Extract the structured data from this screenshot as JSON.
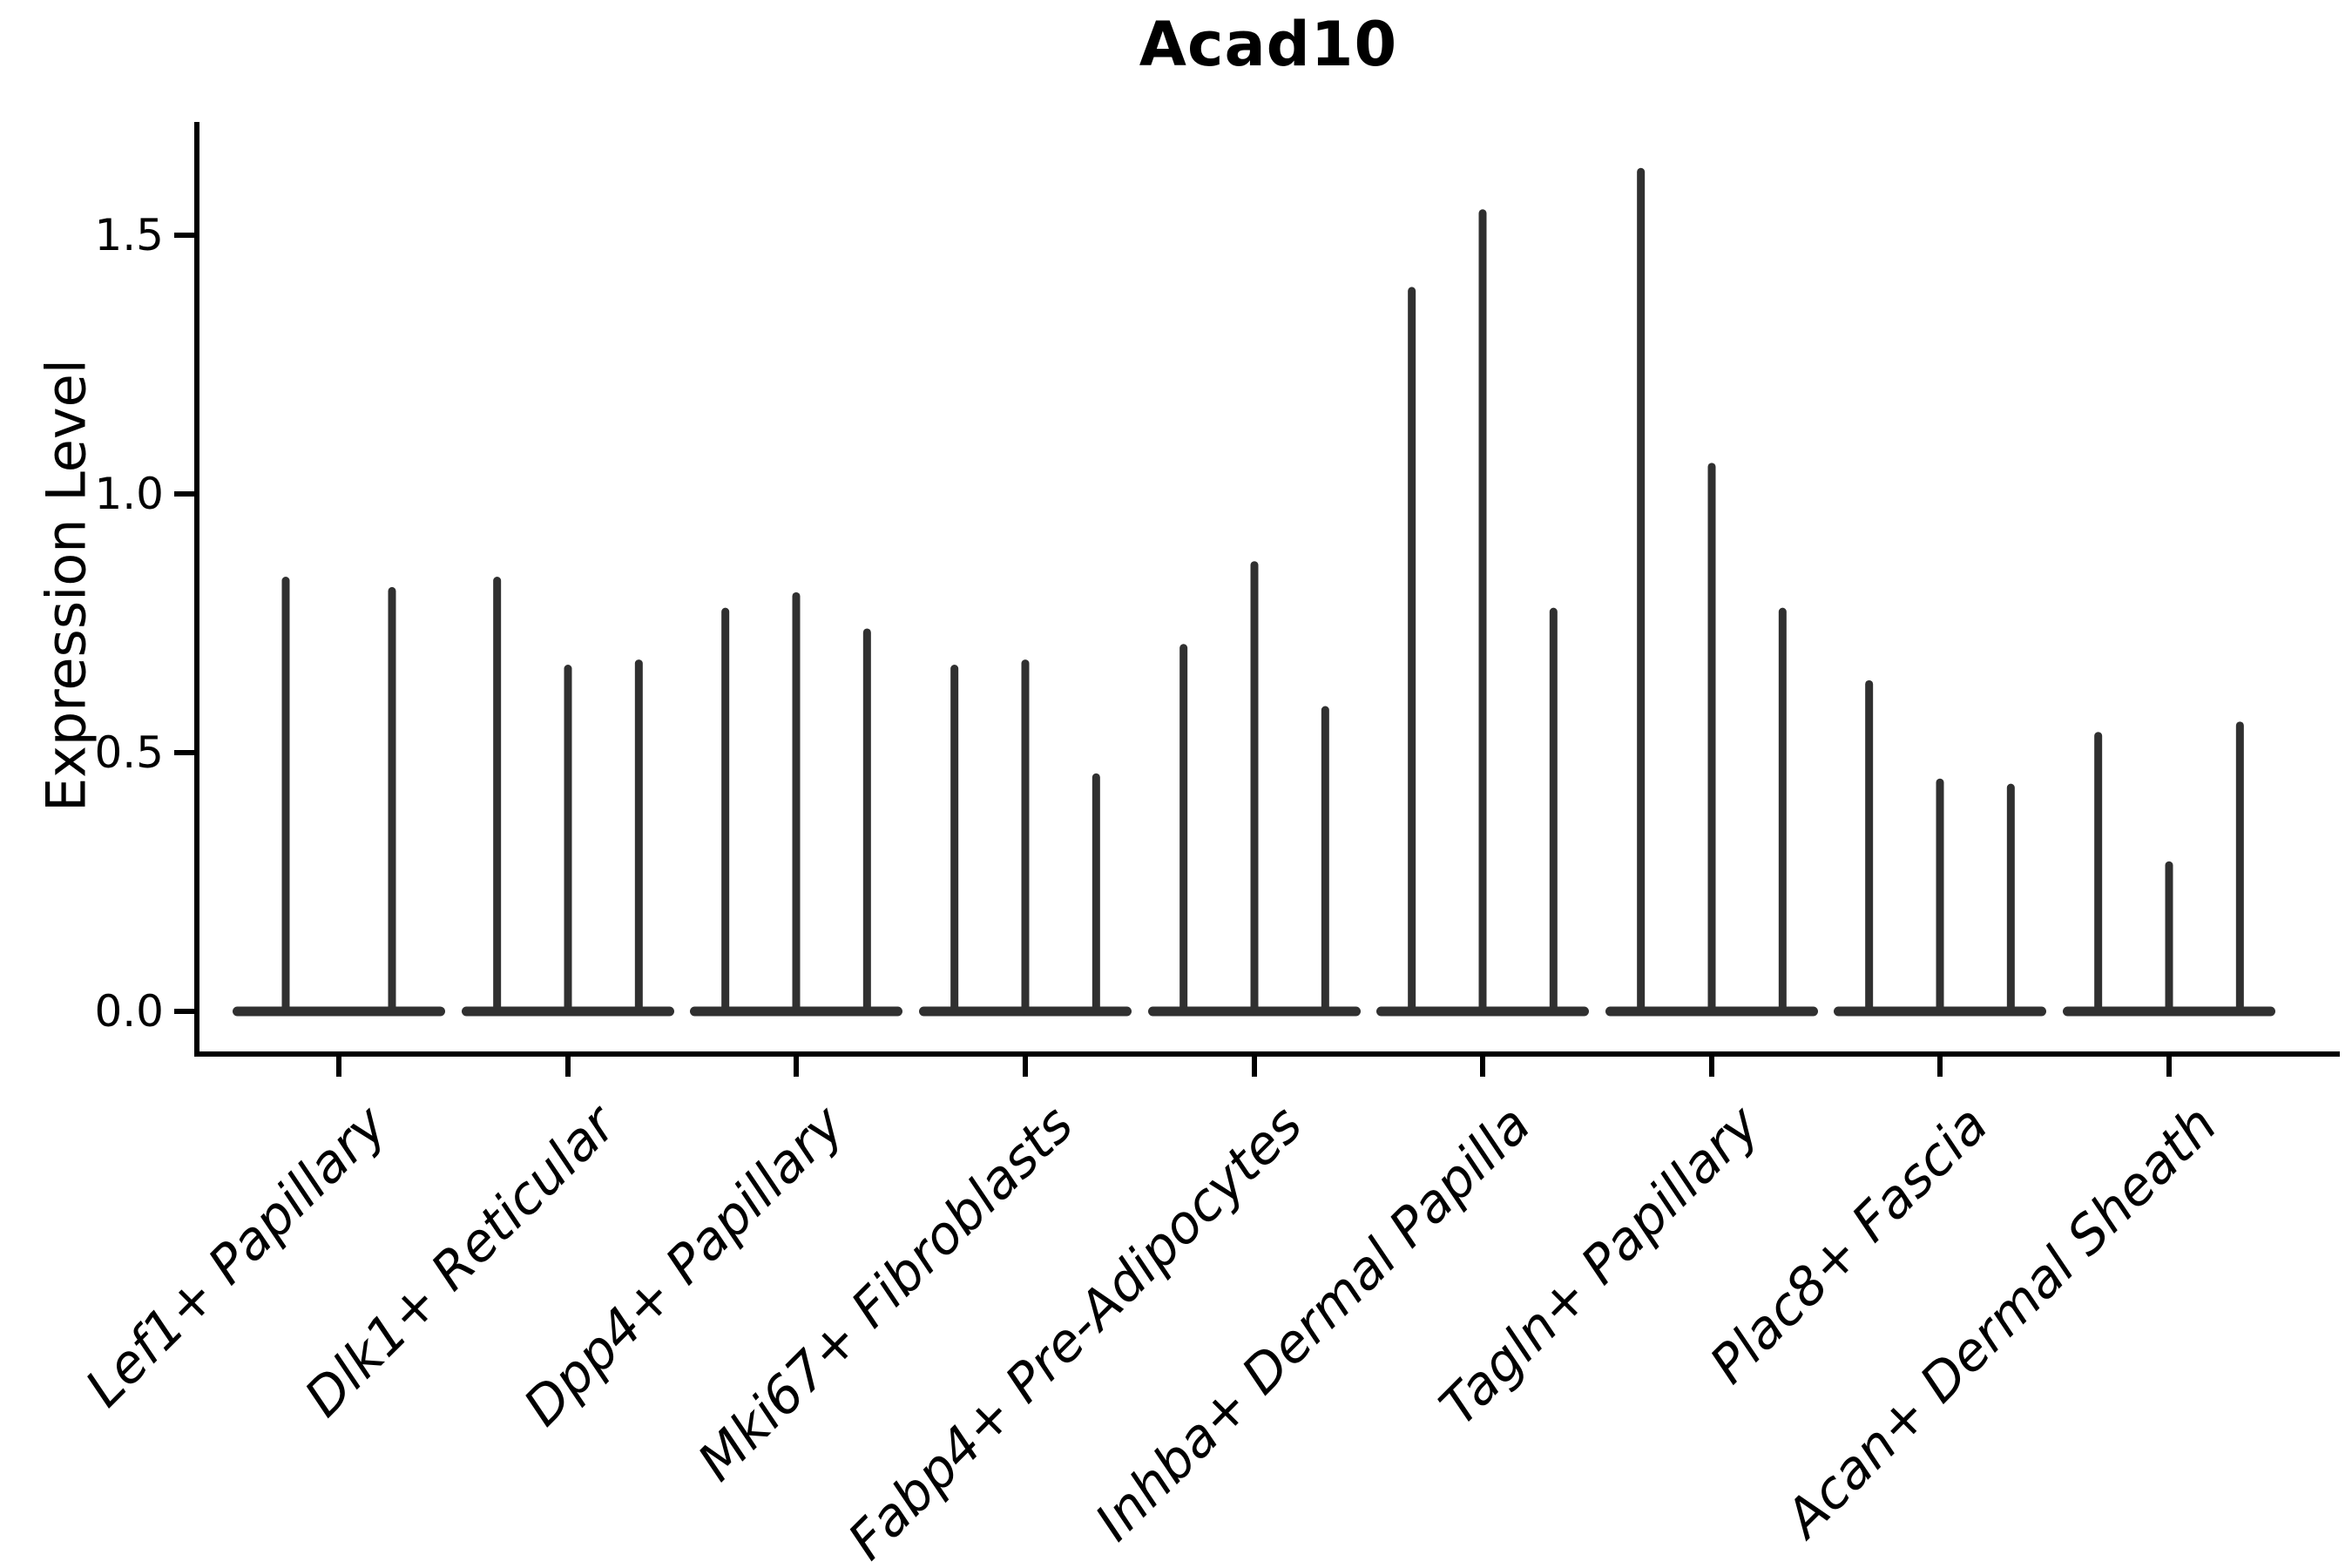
{
  "chart_data": {
    "type": "violin",
    "title": "Acad10",
    "ylabel": "Expression Level",
    "xlabel": "",
    "ylim": [
      -0.08,
      1.72
    ],
    "grid": false,
    "legend": "none",
    "ytick_values": [
      0.0,
      0.5,
      1.0,
      1.5
    ],
    "ytick_labels": [
      "0.0",
      "0.5",
      "1.0",
      "1.5"
    ],
    "categories": [
      "Lef1+ Papillary",
      "Dlk1+ Reticular",
      "Dpp4+ Papillary",
      "Mki67+ Fibroblasts",
      "Fabp4+ Pre-Adipocytes",
      "Inhba+ Dermal Papilla",
      "Tagln+ Papillary",
      "Plac8+ Fascia",
      "Acan+ Dermal Sheath"
    ],
    "groups": [
      {
        "category": "Lef1+ Papillary",
        "violin_max_values": [
          0.84,
          0.82
        ]
      },
      {
        "category": "Dlk1+ Reticular",
        "violin_max_values": [
          0.84,
          0.67,
          0.68
        ]
      },
      {
        "category": "Dpp4+ Papillary",
        "violin_max_values": [
          0.78,
          0.81,
          0.74
        ]
      },
      {
        "category": "Mki67+ Fibroblasts",
        "violin_max_values": [
          0.67,
          0.68,
          0.46
        ]
      },
      {
        "category": "Fabp4+ Pre-Adipocytes",
        "violin_max_values": [
          0.71,
          0.87,
          0.59
        ]
      },
      {
        "category": "Inhba+ Dermal Papilla",
        "violin_max_values": [
          1.4,
          1.55,
          0.78
        ]
      },
      {
        "category": "Tagln+ Papillary",
        "violin_max_values": [
          1.63,
          1.06,
          0.78
        ]
      },
      {
        "category": "Plac8+ Fascia",
        "violin_max_values": [
          0.64,
          0.45,
          0.44
        ]
      },
      {
        "category": "Acan+ Dermal Sheath",
        "violin_max_values": [
          0.54,
          0.29,
          0.56
        ]
      }
    ],
    "description": "Violin plot of Acad10 expression; each violin is a thin spike with its mass concentrated at 0, drawn per split within each cell-type group.",
    "colors": {
      "violin": "#303030",
      "axis": "#000000",
      "text": "#000000",
      "background": "#ffffff"
    }
  }
}
